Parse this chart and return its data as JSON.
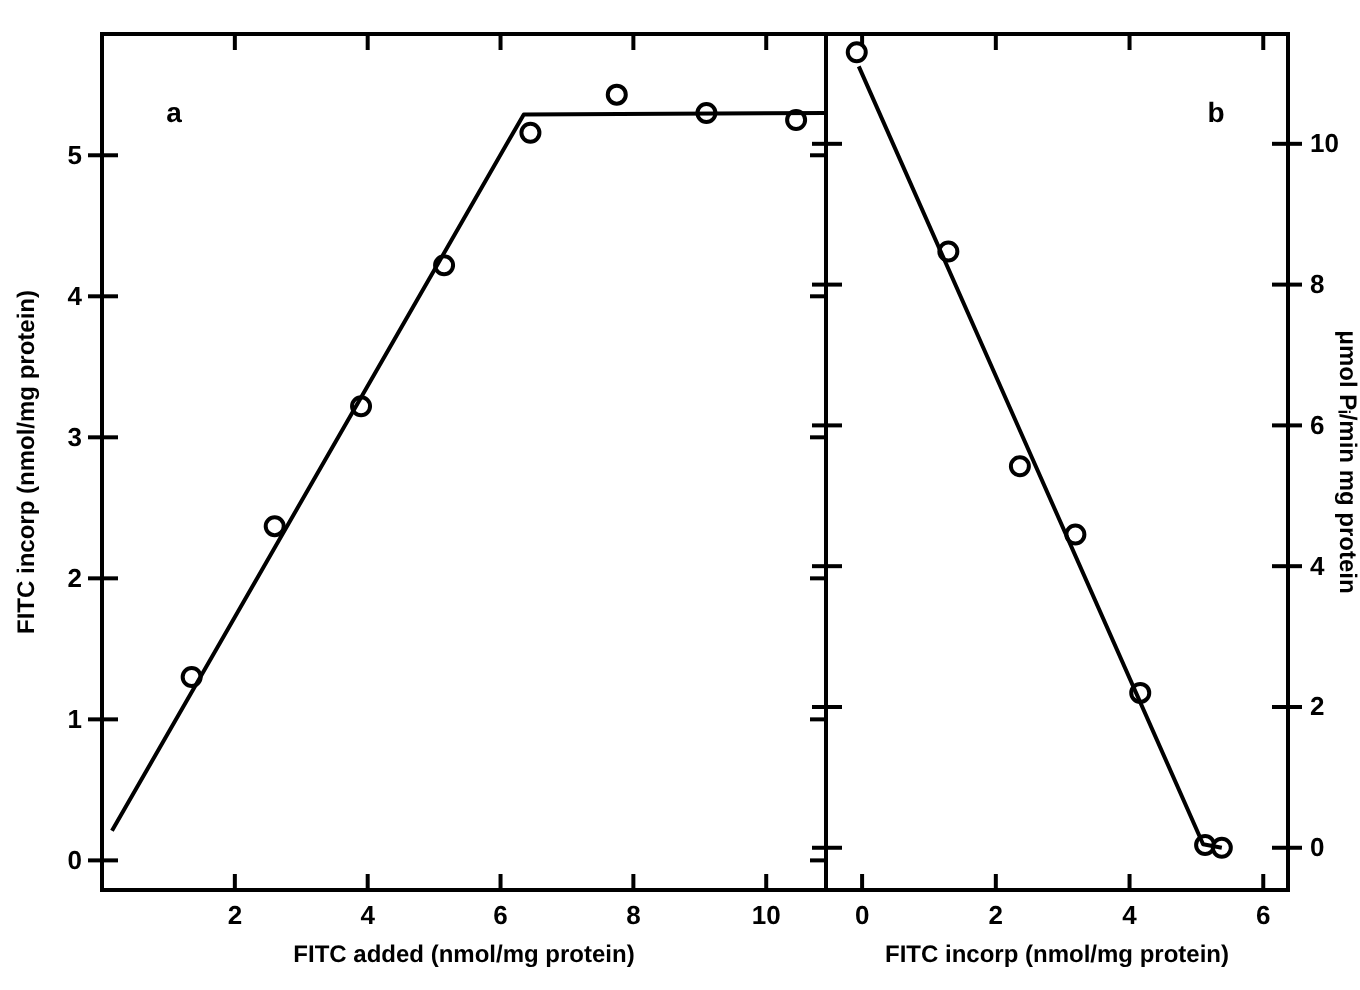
{
  "chart_data": [
    {
      "type": "scatter",
      "xlabel": "FITC added (nmol/mg protein)",
      "ylabel": "FITC incorp (nmol/mg protein)",
      "xlim": [
        0,
        10.9
      ],
      "ylim": [
        -0.21,
        5.86
      ],
      "xticks": [
        2,
        4,
        6,
        8,
        10
      ],
      "yticks": [
        0,
        1,
        2,
        3,
        4,
        5
      ],
      "annotations": [
        "a"
      ],
      "series": [
        {
          "type": "scatter",
          "marker": "circle",
          "color": "#000000",
          "x": [
            1.35,
            2.6,
            3.9,
            5.15,
            6.45,
            7.75,
            9.1,
            10.45
          ],
          "values": [
            1.3,
            2.37,
            3.22,
            4.22,
            5.16,
            5.43,
            5.3,
            5.25
          ]
        },
        {
          "type": "line",
          "marker": "none",
          "color": "#000000",
          "x": [
            0.15,
            6.35,
            10.9
          ],
          "values": [
            0.21,
            5.29,
            5.3
          ]
        }
      ]
    },
    {
      "type": "scatter",
      "xlabel": "FITC incorp (nmol/mg protein)",
      "y2label": "μmol Pᵢ/min mg protein",
      "xlim": [
        -0.54,
        6.37
      ],
      "y2lim": [
        -0.6,
        11.56
      ],
      "xticks": [
        0,
        2,
        4,
        6
      ],
      "y2ticks": [
        0,
        2,
        4,
        6,
        8,
        10
      ],
      "annotations": [
        "b"
      ],
      "series": [
        {
          "type": "scatter",
          "marker": "circle",
          "axis": "y2",
          "color": "#000000",
          "x": [
            -0.08,
            1.29,
            2.36,
            3.19,
            4.16,
            5.13,
            5.38
          ],
          "values": [
            11.3,
            8.47,
            5.42,
            4.45,
            2.2,
            0.04,
            0
          ]
        },
        {
          "type": "line",
          "marker": "none",
          "axis": "y2",
          "color": "#000000",
          "x": [
            -0.05,
            5.1,
            5.38
          ],
          "values": [
            11.1,
            0.05,
            0
          ]
        }
      ]
    }
  ]
}
